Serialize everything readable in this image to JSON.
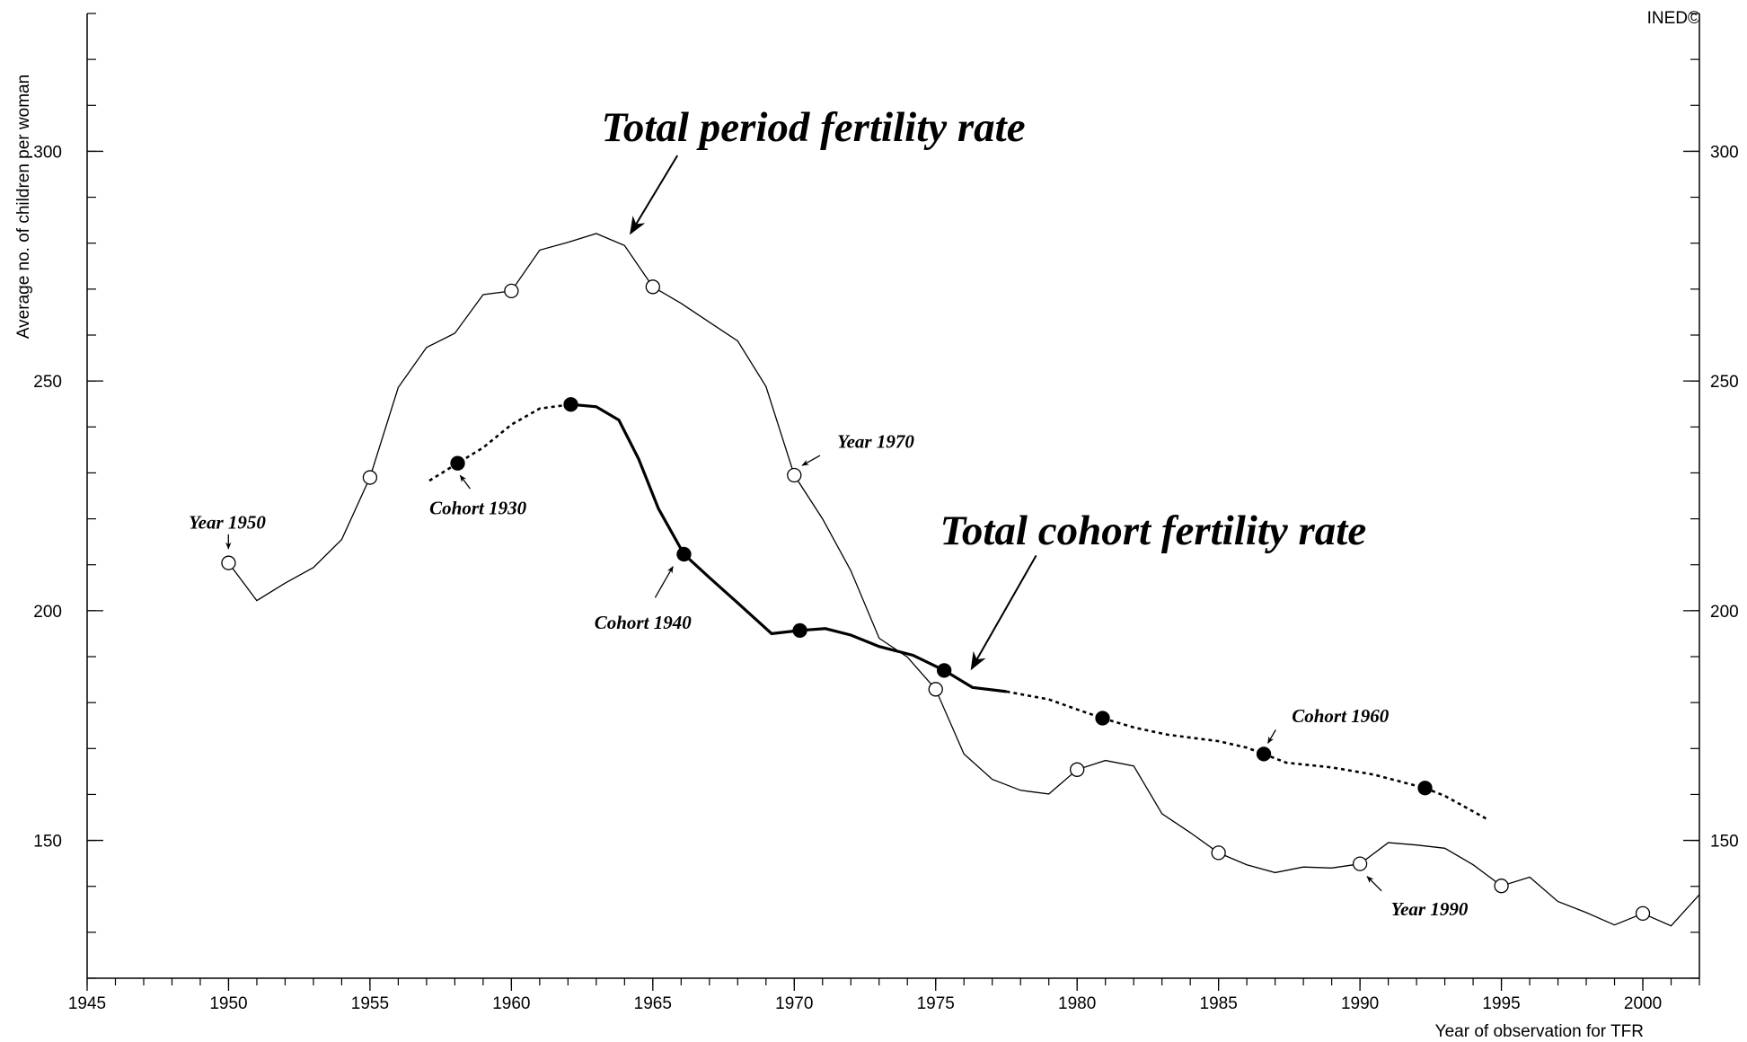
{
  "chart_data": {
    "type": "line",
    "xlabel": "Year of observation for TFR",
    "ylabel": "Average no. of children per woman",
    "credit": "INED©",
    "xlim": [
      1945,
      2002
    ],
    "ylim": [
      120,
      330
    ],
    "xticks": [
      1945,
      1950,
      1955,
      1960,
      1965,
      1970,
      1975,
      1980,
      1985,
      1990,
      1995,
      2000
    ],
    "yticks": [
      150,
      200,
      250,
      300
    ],
    "xminor_step": 1,
    "yminor_step": 10,
    "color": "#000000",
    "series": [
      {
        "line": "solid",
        "width": 1.3,
        "marker": null,
        "x": [
          1950,
          1951,
          1952,
          1953,
          1954,
          1955,
          1956,
          1957,
          1958,
          1959,
          1960,
          1961,
          1962,
          1963,
          1964,
          1965,
          1966,
          1967,
          1968,
          1969,
          1970,
          1971,
          1972,
          1973,
          1974,
          1975,
          1976,
          1977,
          1978,
          1979,
          1980,
          1981,
          1982,
          1983,
          1984,
          1985,
          1986,
          1987,
          1988,
          1989,
          1990,
          1991,
          1992,
          1993,
          1994,
          1995,
          1996,
          1997,
          1998,
          1999,
          2000,
          2001,
          2002
        ],
        "values": [
          210.4,
          202.2,
          206,
          209.4,
          215.5,
          229,
          248.6,
          257.3,
          260.4,
          268.8,
          269.6,
          278.5,
          280.2,
          282.1,
          279.5,
          270.5,
          266.9,
          262.8,
          258.7,
          248.8,
          229.5,
          220,
          208.7,
          194,
          189.9,
          182.9,
          168.8,
          163.3,
          160.9,
          160.1,
          165.4,
          167.4,
          166.2,
          155.8,
          151.7,
          147.3,
          144.7,
          143,
          144.2,
          144,
          144.9,
          149.5,
          149,
          148.3,
          144.7,
          140.1,
          142,
          136.7,
          134.3,
          131.6,
          134.1,
          131.4,
          138.2
        ]
      },
      {
        "line": "none",
        "width": 1.3,
        "marker": "open",
        "x": [
          1950,
          1955,
          1960,
          1965,
          1970,
          1975,
          1980,
          1985,
          1990,
          1995,
          2000
        ],
        "values": [
          210.4,
          229,
          269.6,
          270.5,
          229.5,
          182.9,
          165.4,
          147.3,
          144.9,
          140.1,
          134.1
        ]
      },
      {
        "line": "dotted",
        "width": 2.6,
        "marker": null,
        "x": [
          1957.1,
          1958.1,
          1959.0,
          1960.0,
          1961.0,
          1962.1
        ],
        "values": [
          228.3,
          232.1,
          235.5,
          240.5,
          244.0,
          244.9
        ]
      },
      {
        "line": "solid",
        "width": 3.2,
        "marker": null,
        "x": [
          1962.1,
          1963.0,
          1963.8,
          1964.5,
          1965.2,
          1966.1,
          1967.0,
          1968.0,
          1969.2,
          1970.2,
          1971.1,
          1972.0,
          1973.0,
          1974.2,
          1975.3,
          1976.3,
          1977.5
        ],
        "values": [
          244.9,
          244.4,
          241.5,
          233,
          222.2,
          212.3,
          207.2,
          201.7,
          195,
          195.7,
          196.1,
          194.7,
          192.2,
          190.3,
          187,
          183.3,
          182.4
        ]
      },
      {
        "line": "dotted",
        "width": 2.6,
        "marker": null,
        "x": [
          1977.5,
          1979.0,
          1980.0,
          1980.9,
          1982.0,
          1983.2,
          1985.0,
          1986.0,
          1986.6,
          1987.4,
          1989.0,
          1990.5,
          1992.3,
          1993.0,
          1994.5
        ],
        "values": [
          182.4,
          180.7,
          178.5,
          176.6,
          174.6,
          173,
          171.6,
          170.2,
          168.8,
          166.9,
          165.9,
          164.3,
          161.4,
          159.7,
          154.6
        ]
      },
      {
        "line": "none",
        "width": 1.3,
        "marker": "filled",
        "x": [
          1958.1,
          1962.1,
          1966.1,
          1970.2,
          1975.3,
          1980.9,
          1986.6,
          1992.3
        ],
        "values": [
          232.1,
          244.9,
          212.3,
          195.7,
          187,
          176.6,
          168.8,
          161.4
        ]
      }
    ],
    "annotations": [
      {
        "text": "Total period fertility rate",
        "size": "big"
      },
      {
        "text": "Total cohort fertility rate",
        "size": "big"
      },
      {
        "text": "Year 1950",
        "size": "small"
      },
      {
        "text": "Cohort 1930",
        "size": "small"
      },
      {
        "text": "Cohort 1940",
        "size": "small"
      },
      {
        "text": "Year 1970",
        "size": "small"
      },
      {
        "text": "Cohort 1960",
        "size": "small"
      },
      {
        "text": "Year 1990",
        "size": "small"
      }
    ]
  }
}
